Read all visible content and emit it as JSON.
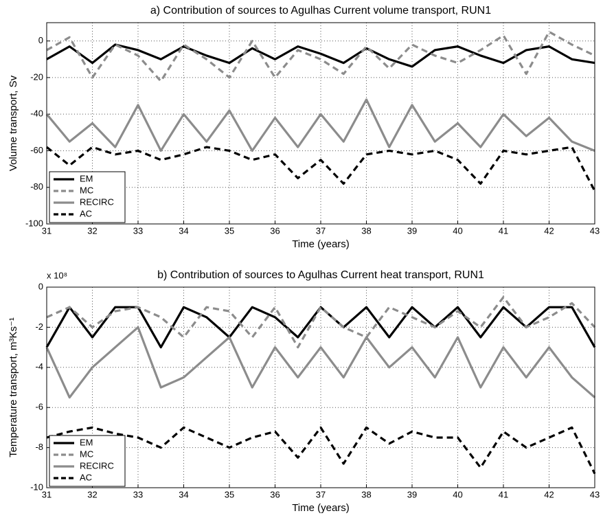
{
  "chart_data": [
    {
      "type": "line",
      "title": "a) Contribution of sources to Agulhas Current volume transport, RUN1",
      "xlabel": "Time (years)",
      "ylabel": "Volume transport, Sv",
      "x": [
        31,
        31.5,
        32,
        32.5,
        33,
        33.5,
        34,
        34.5,
        35,
        35.5,
        36,
        36.5,
        37,
        37.5,
        38,
        38.5,
        39,
        39.5,
        40,
        40.5,
        41,
        41.5,
        42,
        42.5,
        43
      ],
      "xlim": [
        31,
        43
      ],
      "xticks": [
        31,
        32,
        33,
        34,
        35,
        36,
        37,
        38,
        39,
        40,
        41,
        42,
        43
      ],
      "ylim": [
        -100,
        10
      ],
      "yticks": [
        -100,
        -80,
        -60,
        -40,
        -20,
        0
      ],
      "grid": true,
      "legend": "lower left",
      "series": [
        {
          "name": "EM",
          "color": "#000000",
          "dash": false,
          "values": [
            -10,
            -3,
            -12,
            -2,
            -5,
            -10,
            -3,
            -8,
            -12,
            -4,
            -10,
            -3,
            -7,
            -12,
            -4,
            -10,
            -14,
            -5,
            -3,
            -8,
            -12,
            -5,
            -3,
            -10,
            -12
          ]
        },
        {
          "name": "MC",
          "color": "#8c8c8c",
          "dash": true,
          "values": [
            -5,
            2,
            -20,
            -2,
            -8,
            -22,
            -2,
            -10,
            -20,
            0,
            -20,
            -5,
            -10,
            -18,
            -3,
            -15,
            -2,
            -8,
            -12,
            -5,
            3,
            -18,
            5,
            -2,
            -8
          ]
        },
        {
          "name": "RECIRC",
          "color": "#8c8c8c",
          "dash": false,
          "values": [
            -40,
            -55,
            -45,
            -58,
            -35,
            -60,
            -40,
            -55,
            -38,
            -60,
            -42,
            -58,
            -40,
            -55,
            -32,
            -58,
            -35,
            -55,
            -45,
            -58,
            -40,
            -52,
            -42,
            -55,
            -60
          ]
        },
        {
          "name": "AC",
          "color": "#000000",
          "dash": true,
          "values": [
            -58,
            -68,
            -58,
            -62,
            -60,
            -65,
            -62,
            -58,
            -60,
            -65,
            -62,
            -75,
            -65,
            -78,
            -62,
            -60,
            -62,
            -60,
            -65,
            -78,
            -60,
            -62,
            -60,
            -58,
            -82
          ]
        }
      ]
    },
    {
      "type": "line",
      "title": "b) Contribution of sources to Agulhas Current heat transport, RUN1",
      "xlabel": "Time (years)",
      "ylabel": "Temperature transport, m³Ks⁻¹",
      "annotation": "x 10⁸",
      "x": [
        31,
        31.5,
        32,
        32.5,
        33,
        33.5,
        34,
        34.5,
        35,
        35.5,
        36,
        36.5,
        37,
        37.5,
        38,
        38.5,
        39,
        39.5,
        40,
        40.5,
        41,
        41.5,
        42,
        42.5,
        43
      ],
      "xlim": [
        31,
        43
      ],
      "xticks": [
        31,
        32,
        33,
        34,
        35,
        36,
        37,
        38,
        39,
        40,
        41,
        42,
        43
      ],
      "ylim": [
        -10,
        0
      ],
      "yticks": [
        -10,
        -8,
        -6,
        -4,
        -2,
        0
      ],
      "grid": true,
      "legend": "lower left",
      "series": [
        {
          "name": "EM",
          "color": "#000000",
          "dash": false,
          "values": [
            -3,
            -1,
            -2.5,
            -1,
            -1,
            -3,
            -1,
            -1.5,
            -2.5,
            -1,
            -1.5,
            -2.5,
            -1,
            -2,
            -1,
            -2.5,
            -1,
            -2,
            -1,
            -2.5,
            -1,
            -2,
            -1,
            -1,
            -3
          ]
        },
        {
          "name": "MC",
          "color": "#8c8c8c",
          "dash": true,
          "values": [
            -1.5,
            -1,
            -2,
            -1.2,
            -1,
            -1.5,
            -2.5,
            -1,
            -1.2,
            -2.5,
            -1,
            -3,
            -1,
            -2,
            -2.5,
            -1,
            -1.5,
            -2,
            -1.2,
            -2,
            -0.5,
            -2,
            -1.5,
            -0.8,
            -2
          ]
        },
        {
          "name": "RECIRC",
          "color": "#8c8c8c",
          "dash": false,
          "values": [
            -3,
            -5.5,
            -4,
            -3,
            -2,
            -5,
            -4.5,
            -3.5,
            -2.5,
            -5,
            -3,
            -4.5,
            -3,
            -4.5,
            -2.5,
            -4,
            -3,
            -4.5,
            -2.5,
            -5,
            -3,
            -4.5,
            -3,
            -4.5,
            -5.5
          ]
        },
        {
          "name": "AC",
          "color": "#000000",
          "dash": true,
          "values": [
            -7.5,
            -7.2,
            -7,
            -7.3,
            -7.5,
            -8,
            -7,
            -7.5,
            -8,
            -7.5,
            -7.2,
            -8.5,
            -7,
            -8.8,
            -7,
            -7.8,
            -7.2,
            -7.5,
            -7.5,
            -9,
            -7.2,
            -8,
            -7.5,
            -7,
            -9.3
          ]
        }
      ]
    }
  ]
}
